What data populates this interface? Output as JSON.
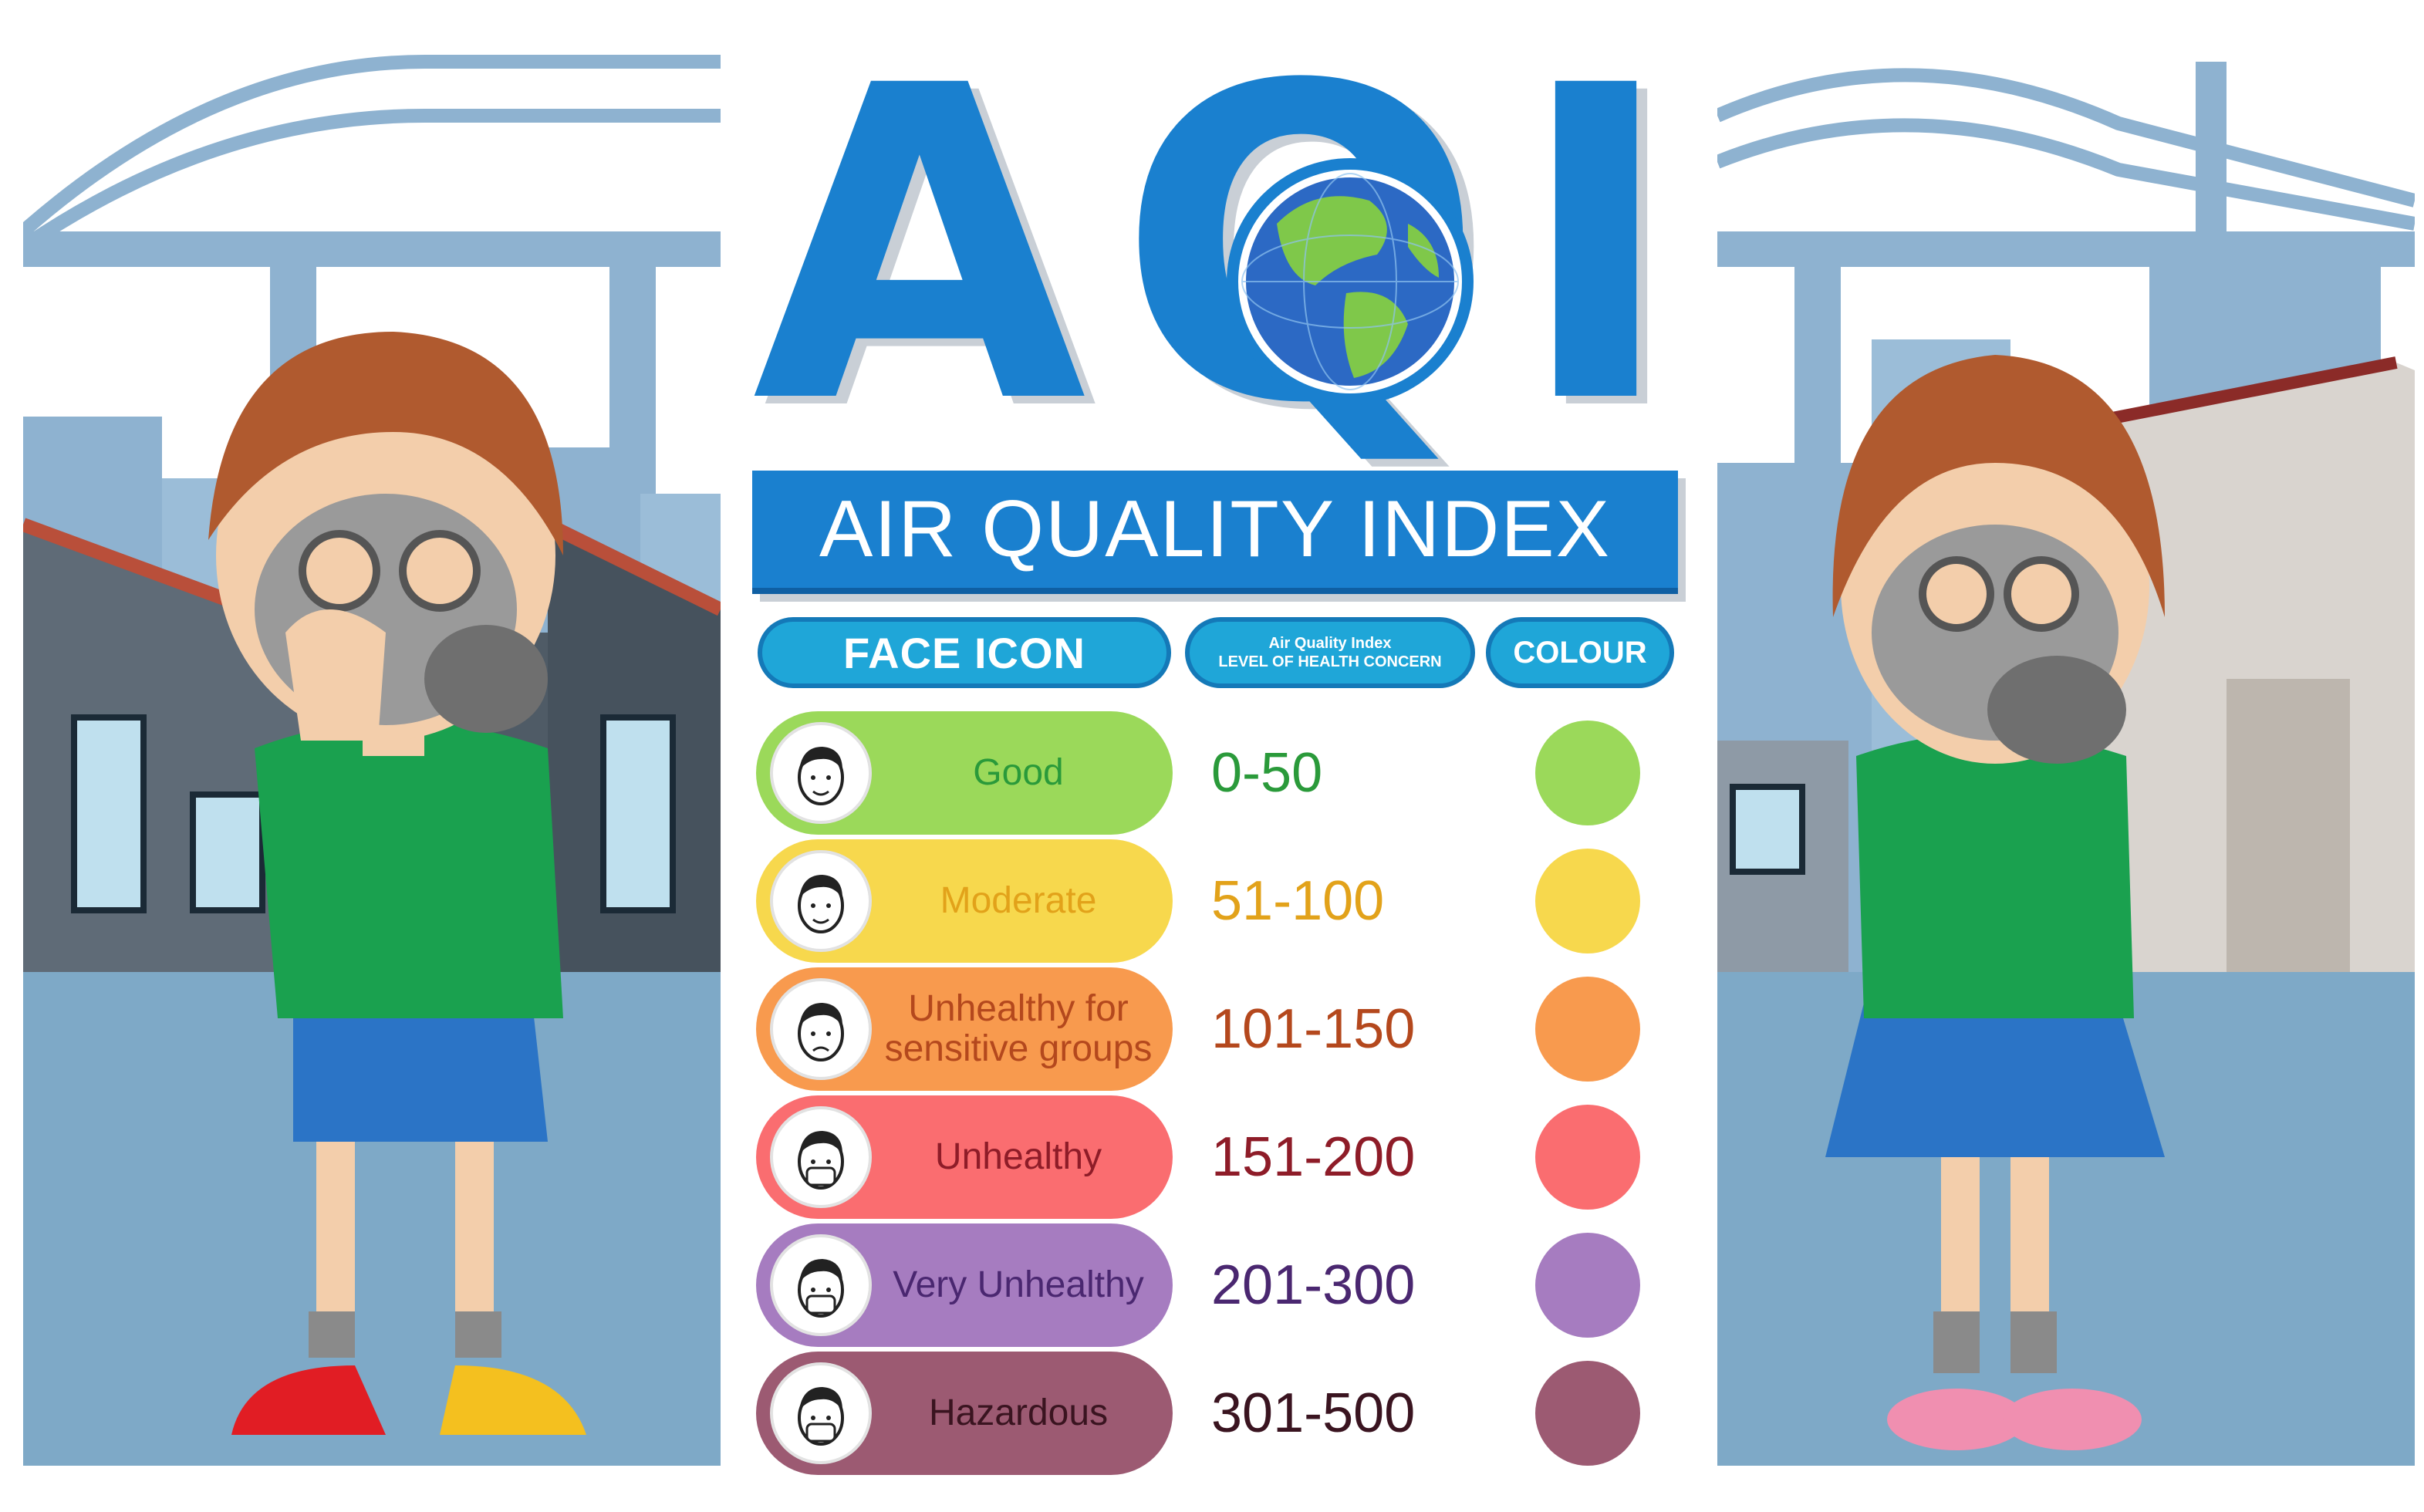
{
  "title": {
    "acronym": "AQI",
    "full": "AIR QUALITY INDEX"
  },
  "headers": {
    "face_icon": "FACE ICON",
    "aqi_line1": "Air Quality Index",
    "aqi_line2": "LEVEL OF HEALTH CONCERN",
    "colour": "COLOUR"
  },
  "levels": [
    {
      "name": "Good",
      "range": "0-50",
      "color": "#9bd95a",
      "text_color": "#2a9a3a",
      "range_color": "#2a9a3a",
      "icon": "smiling-face-icon"
    },
    {
      "name": "Moderate",
      "range": "51-100",
      "color": "#f7d84d",
      "text_color": "#e2a21a",
      "range_color": "#e2a21a",
      "icon": "neutral-face-icon"
    },
    {
      "name": "Unhealthy for sensitive groups",
      "range": "101-150",
      "color": "#f89a4e",
      "text_color": "#b4481d",
      "range_color": "#b4481d",
      "icon": "worried-face-icon"
    },
    {
      "name": "Unhealthy",
      "range": "151-200",
      "color": "#fa6d70",
      "text_color": "#8e1c28",
      "range_color": "#8e1c28",
      "icon": "face-mask-icon"
    },
    {
      "name": "Very Unhealthy",
      "range": "201-300",
      "color": "#a67cc0",
      "text_color": "#4a2770",
      "range_color": "#4a2770",
      "icon": "gas-mask-face-icon"
    },
    {
      "name": "Hazardous",
      "range": "301-500",
      "color": "#9c5a72",
      "text_color": "#3a1420",
      "range_color": "#3a1420",
      "icon": "respirator-face-icon"
    }
  ],
  "colors": {
    "brand_blue": "#1a80cf",
    "header_cyan": "#1fa6d8",
    "sky_gray_blue": "#8eafcc",
    "ground": "#7ea9c7"
  }
}
